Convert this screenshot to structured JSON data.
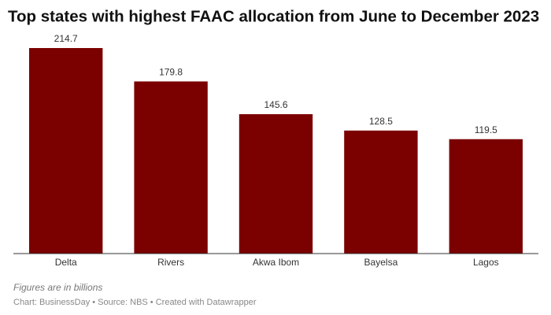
{
  "chart_data": {
    "type": "bar",
    "title": "Top states with highest FAAC allocation from June to December 2023",
    "categories": [
      "Delta",
      "Rivers",
      "Akwa Ibom",
      "Bayelsa",
      "Lagos"
    ],
    "values": [
      214.7,
      179.8,
      145.6,
      128.5,
      119.5
    ],
    "color": "#7b0000",
    "notes": "Figures are in billions",
    "footer": "Chart: BusinessDay • Source: NBS • Created with Datawrapper"
  }
}
